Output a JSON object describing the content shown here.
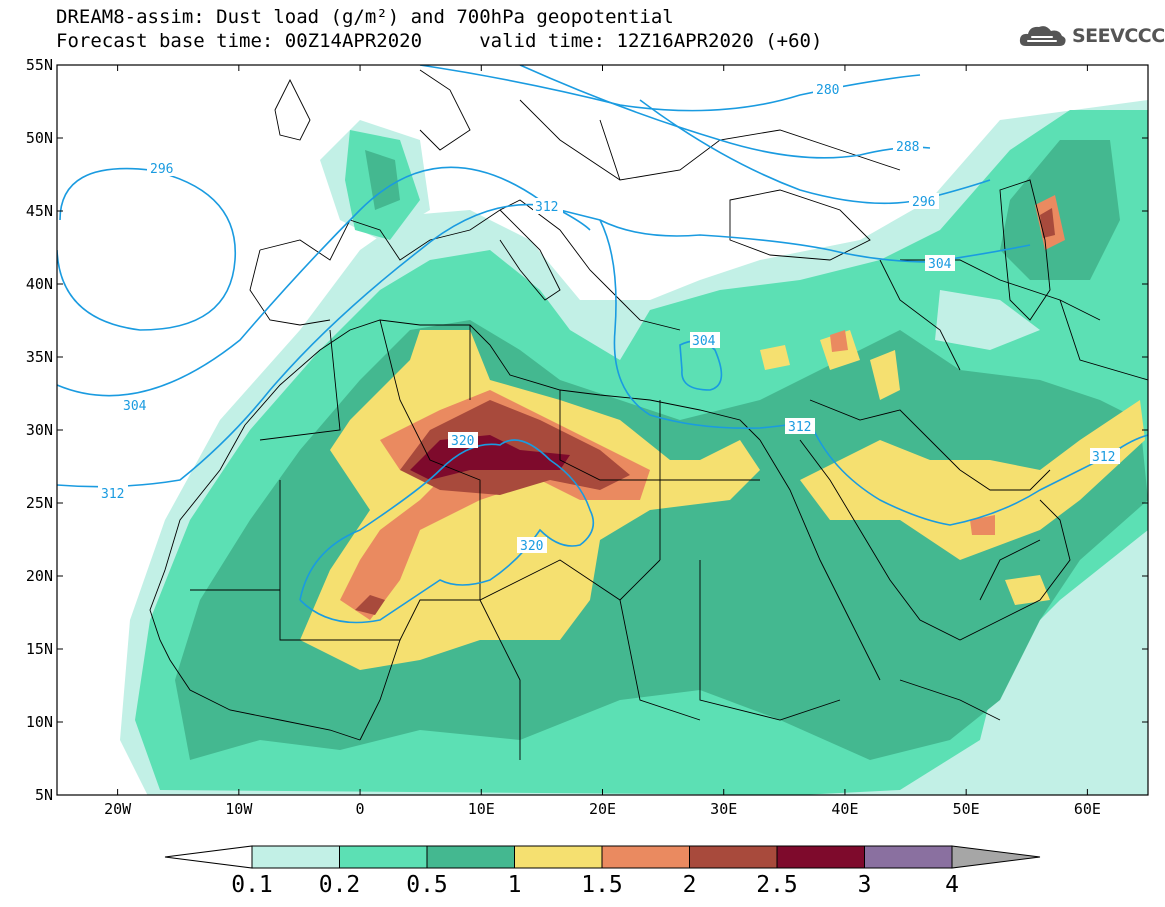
{
  "title": {
    "line1": "DREAM8-assim: Dust load (g/m²) and 700hPa geopotential",
    "line2": "Forecast base time: 00Z14APR2020     valid time: 12Z16APR2020 (+60)"
  },
  "logo": {
    "text": "SEEVCCC",
    "icon": "cloud-icon"
  },
  "axes": {
    "lat_labels": [
      "55N",
      "50N",
      "45N",
      "40N",
      "35N",
      "30N",
      "25N",
      "20N",
      "15N",
      "10N",
      "5N"
    ],
    "lat_values": [
      55,
      50,
      45,
      40,
      35,
      30,
      25,
      20,
      15,
      10,
      5
    ],
    "lon_labels": [
      "20W",
      "10W",
      "0",
      "10E",
      "20E",
      "30E",
      "40E",
      "50E",
      "60E"
    ],
    "lon_values": [
      -20,
      -10,
      0,
      10,
      20,
      30,
      40,
      50,
      60
    ],
    "lon_range": [
      -25,
      65
    ],
    "lat_range": [
      5,
      55
    ]
  },
  "contours": {
    "color": "#1a9be0",
    "labels": [
      "280",
      "288",
      "296",
      "296",
      "304",
      "312",
      "304",
      "304",
      "312",
      "320",
      "320",
      "312",
      "312"
    ]
  },
  "colorbar": {
    "levels": [
      "0.1",
      "0.2",
      "0.5",
      "1",
      "1.5",
      "2",
      "2.5",
      "3",
      "4"
    ],
    "colors": [
      "#c2f0e6",
      "#5ce0b4",
      "#44b890",
      "#f5e070",
      "#ea8a60",
      "#a84a3c",
      "#7e0a2c",
      "#8a70a0",
      "#a6a6a6"
    ],
    "under_color": "#ffffff"
  }
}
